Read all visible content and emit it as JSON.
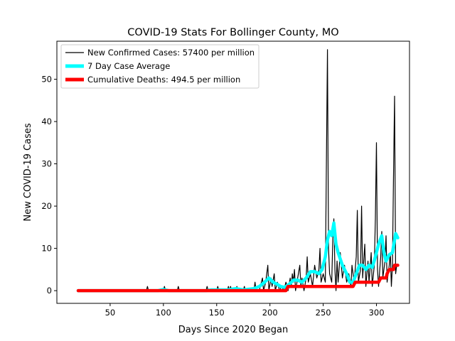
{
  "chart_data": {
    "type": "line",
    "title": "COVID-19 Stats For Bollinger County, MO",
    "xlabel": "Days Since 2020 Began",
    "ylabel": "New COVID-19 Cases",
    "xlim": [
      0,
      331
    ],
    "ylim": [
      -3,
      59
    ],
    "xticks": [
      50,
      100,
      150,
      200,
      250,
      300
    ],
    "yticks": [
      0,
      10,
      20,
      30,
      40,
      50
    ],
    "grid": false,
    "legend_position": "top-left",
    "series": [
      {
        "name": "New Confirmed Cases: 57400 per million",
        "color": "#000000",
        "points": [
          [
            20,
            0
          ],
          [
            84,
            0
          ],
          [
            85,
            1
          ],
          [
            86,
            0
          ],
          [
            100,
            0
          ],
          [
            101,
            1
          ],
          [
            102,
            0
          ],
          [
            113,
            0
          ],
          [
            114,
            1
          ],
          [
            115,
            0
          ],
          [
            140,
            0
          ],
          [
            141,
            1
          ],
          [
            142,
            0
          ],
          [
            150,
            0
          ],
          [
            151,
            1
          ],
          [
            152,
            0
          ],
          [
            160,
            0
          ],
          [
            161,
            1
          ],
          [
            162,
            0
          ],
          [
            163,
            1
          ],
          [
            164,
            0
          ],
          [
            168,
            0
          ],
          [
            169,
            1
          ],
          [
            170,
            0
          ],
          [
            175,
            0
          ],
          [
            176,
            1
          ],
          [
            177,
            0
          ],
          [
            185,
            0
          ],
          [
            186,
            2
          ],
          [
            187,
            0
          ],
          [
            190,
            0
          ],
          [
            191,
            1
          ],
          [
            193,
            3
          ],
          [
            194,
            0
          ],
          [
            196,
            2
          ],
          [
            198,
            6
          ],
          [
            199,
            0
          ],
          [
            201,
            3
          ],
          [
            202,
            1
          ],
          [
            204,
            4
          ],
          [
            205,
            0
          ],
          [
            207,
            2
          ],
          [
            209,
            0
          ],
          [
            211,
            1
          ],
          [
            213,
            0
          ],
          [
            215,
            2
          ],
          [
            217,
            0
          ],
          [
            219,
            3
          ],
          [
            220,
            1
          ],
          [
            221,
            4
          ],
          [
            222,
            2
          ],
          [
            223,
            5
          ],
          [
            224,
            0
          ],
          [
            226,
            3
          ],
          [
            228,
            6
          ],
          [
            229,
            1
          ],
          [
            230,
            3
          ],
          [
            232,
            0
          ],
          [
            234,
            3
          ],
          [
            235,
            8
          ],
          [
            236,
            2
          ],
          [
            238,
            4
          ],
          [
            240,
            1
          ],
          [
            242,
            6
          ],
          [
            244,
            3
          ],
          [
            246,
            5
          ],
          [
            247,
            10
          ],
          [
            248,
            2
          ],
          [
            250,
            4
          ],
          [
            252,
            2
          ],
          [
            253,
            30
          ],
          [
            254,
            57
          ],
          [
            255,
            10
          ],
          [
            256,
            4
          ],
          [
            258,
            2
          ],
          [
            259,
            12
          ],
          [
            260,
            17
          ],
          [
            261,
            5
          ],
          [
            262,
            0
          ],
          [
            263,
            7
          ],
          [
            264,
            2
          ],
          [
            266,
            9
          ],
          [
            268,
            3
          ],
          [
            270,
            6
          ],
          [
            272,
            2
          ],
          [
            274,
            4
          ],
          [
            276,
            1
          ],
          [
            277,
            6
          ],
          [
            279,
            2
          ],
          [
            281,
            8
          ],
          [
            282,
            19
          ],
          [
            283,
            2
          ],
          [
            285,
            5
          ],
          [
            286,
            20
          ],
          [
            287,
            3
          ],
          [
            289,
            11
          ],
          [
            290,
            1
          ],
          [
            292,
            7
          ],
          [
            293,
            2
          ],
          [
            295,
            9
          ],
          [
            296,
            1
          ],
          [
            298,
            6
          ],
          [
            299,
            17
          ],
          [
            300,
            35
          ],
          [
            301,
            5
          ],
          [
            302,
            1
          ],
          [
            304,
            8
          ],
          [
            305,
            14
          ],
          [
            306,
            3
          ],
          [
            308,
            7
          ],
          [
            309,
            13
          ],
          [
            310,
            2
          ],
          [
            312,
            6
          ],
          [
            313,
            9
          ],
          [
            314,
            1
          ],
          [
            315,
            6
          ],
          [
            316,
            27
          ],
          [
            317,
            46
          ],
          [
            318,
            4
          ],
          [
            319,
            6
          ]
        ]
      },
      {
        "name": "7 Day Case Average",
        "color": "#00ffff",
        "points": [
          [
            20,
            0
          ],
          [
            95,
            0
          ],
          [
            100,
            0.3
          ],
          [
            105,
            0
          ],
          [
            140,
            0
          ],
          [
            145,
            0.2
          ],
          [
            150,
            0.2
          ],
          [
            160,
            0.2
          ],
          [
            168,
            0.5
          ],
          [
            175,
            0.2
          ],
          [
            185,
            0.5
          ],
          [
            190,
            1
          ],
          [
            195,
            2
          ],
          [
            199,
            3
          ],
          [
            203,
            2
          ],
          [
            207,
            1.5
          ],
          [
            210,
            1
          ],
          [
            214,
            0.8
          ],
          [
            218,
            1.5
          ],
          [
            222,
            2.5
          ],
          [
            226,
            2.5
          ],
          [
            230,
            2
          ],
          [
            234,
            3
          ],
          [
            238,
            4.5
          ],
          [
            242,
            4.5
          ],
          [
            246,
            4
          ],
          [
            249,
            5
          ],
          [
            252,
            8
          ],
          [
            254,
            12
          ],
          [
            256,
            14
          ],
          [
            258,
            13
          ],
          [
            260,
            16
          ],
          [
            262,
            11
          ],
          [
            264,
            9
          ],
          [
            268,
            6
          ],
          [
            272,
            4
          ],
          [
            275,
            2
          ],
          [
            278,
            2
          ],
          [
            281,
            4
          ],
          [
            284,
            6
          ],
          [
            287,
            6
          ],
          [
            290,
            5
          ],
          [
            293,
            6
          ],
          [
            296,
            5.5
          ],
          [
            299,
            8
          ],
          [
            302,
            11
          ],
          [
            305,
            13
          ],
          [
            307,
            9
          ],
          [
            309,
            7
          ],
          [
            312,
            8.5
          ],
          [
            315,
            9
          ],
          [
            318,
            13.5
          ],
          [
            320,
            12.5
          ]
        ]
      },
      {
        "name": "Cumulative Deaths: 494.5 per million",
        "color": "#ff0000",
        "points": [
          [
            20,
            0
          ],
          [
            215,
            0
          ],
          [
            217,
            1
          ],
          [
            278,
            1
          ],
          [
            280,
            2
          ],
          [
            302,
            2
          ],
          [
            304,
            3
          ],
          [
            309,
            3
          ],
          [
            310,
            4
          ],
          [
            312,
            5
          ],
          [
            316,
            5
          ],
          [
            317,
            6
          ],
          [
            320,
            6
          ]
        ]
      }
    ]
  }
}
